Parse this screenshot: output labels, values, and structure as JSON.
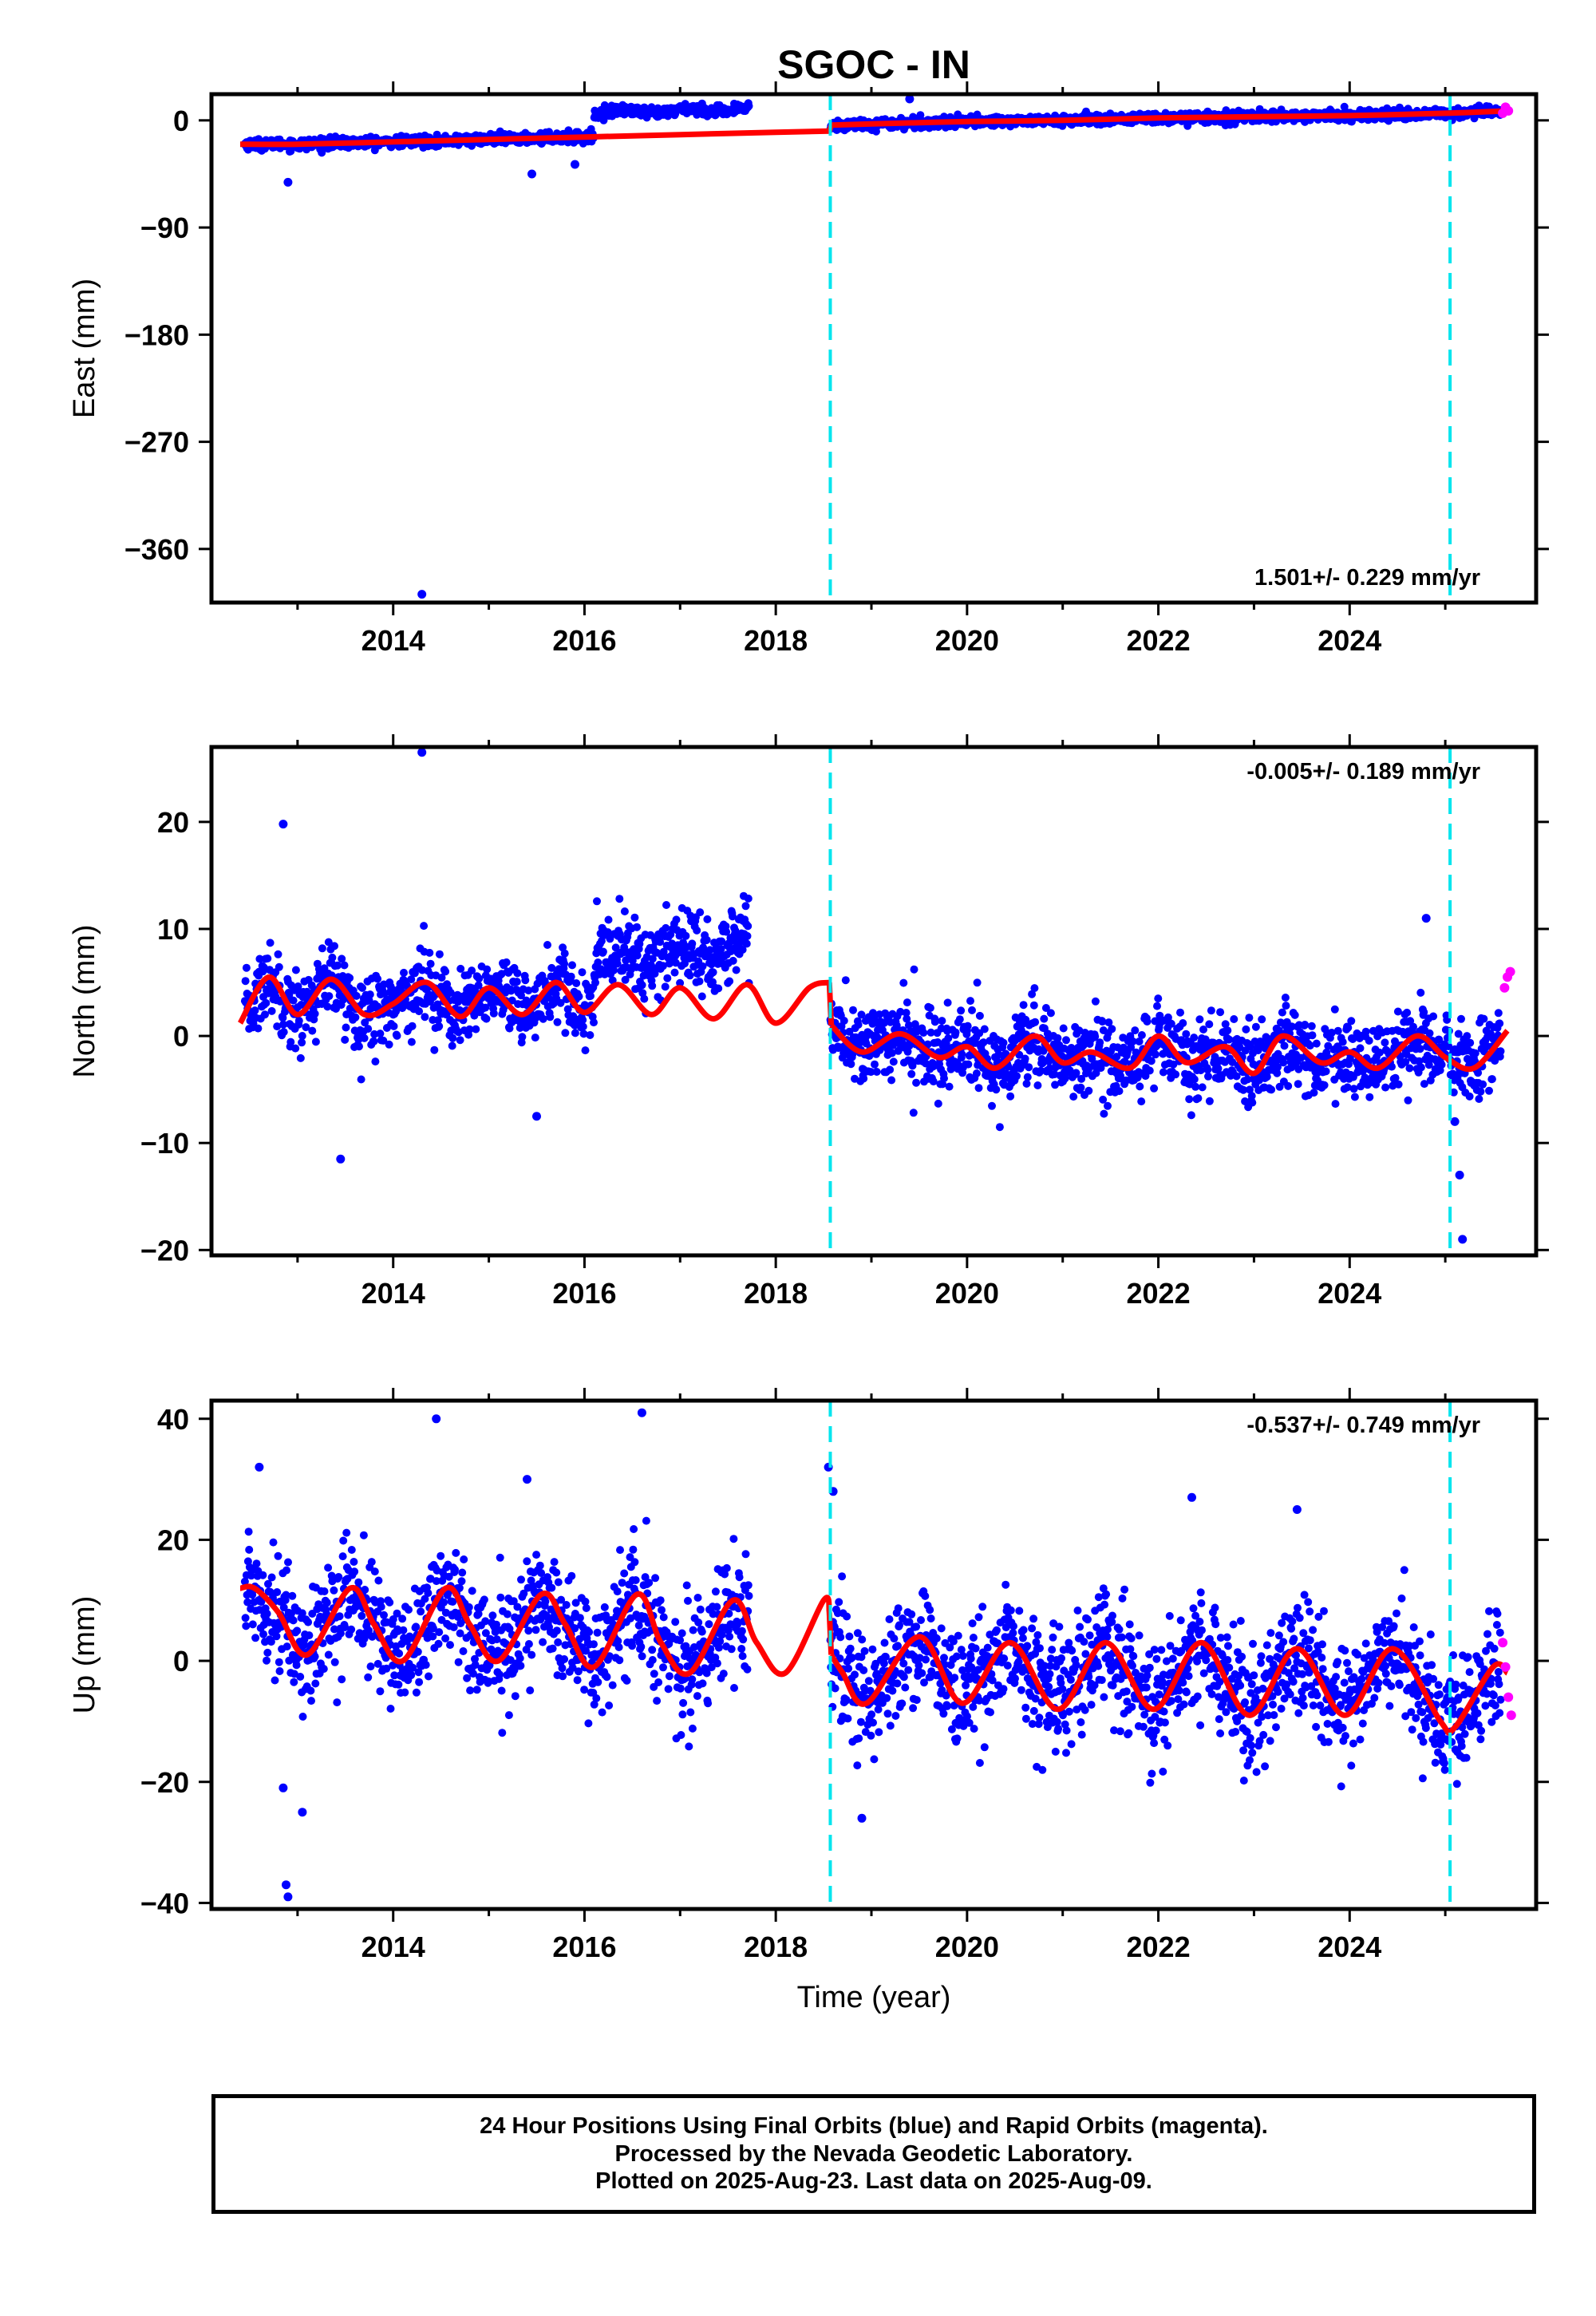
{
  "title": "SGOC - IN",
  "colors": {
    "final_orbits": "#0000ff",
    "rapid_orbits": "#ff00ff",
    "model": "#ff0000",
    "offset_marker": "#00e5ee",
    "frame": "#000000"
  },
  "x_axis": {
    "label": "Time (year)",
    "range": [
      2012.1,
      2025.95
    ],
    "ticks": [
      2014,
      2016,
      2018,
      2020,
      2022,
      2024
    ],
    "tick_labels": [
      "2014",
      "2016",
      "2018",
      "2020",
      "2022",
      "2024"
    ]
  },
  "offset_markers": [
    2018.57,
    2025.05
  ],
  "chart_data": [
    {
      "type": "scatter",
      "name": "east",
      "ylabel": "East (mm)",
      "ylim": [
        -405,
        22
      ],
      "yticks": [
        0,
        -90,
        -180,
        -270,
        -360
      ],
      "ytick_labels": [
        "0",
        "−90",
        "−180",
        "−270",
        "−360"
      ],
      "rate_label": "1.501+/- 0.229 mm/yr",
      "rate_position": "bottom-right",
      "model": {
        "x": [
          2012.4,
          2013.0,
          2014.0,
          2015.0,
          2016.0,
          2017.0,
          2018.0,
          2018.56,
          2018.58,
          2019.0,
          2020.0,
          2021.0,
          2022.0,
          2023.0,
          2024.0,
          2025.0,
          2025.65
        ],
        "y": [
          -20,
          -20,
          -18,
          -16,
          -14,
          -12,
          -10,
          -9,
          -4,
          -3,
          -1,
          0,
          2,
          3,
          4,
          6,
          8
        ]
      },
      "outliers": [
        [
          2014.3,
          -398
        ],
        [
          2012.9,
          -52
        ],
        [
          2015.45,
          -45
        ],
        [
          2015.9,
          -37
        ],
        [
          2019.4,
          18
        ]
      ],
      "rapid_points": [
        [
          2025.6,
          6
        ],
        [
          2025.63,
          11
        ],
        [
          2025.66,
          8
        ]
      ]
    },
    {
      "type": "scatter",
      "name": "north",
      "ylabel": "North (mm)",
      "ylim": [
        -20.5,
        27
      ],
      "yticks": [
        20,
        10,
        0,
        -10,
        -20
      ],
      "ytick_labels": [
        "20",
        "10",
        "0",
        "−10",
        "−20"
      ],
      "rate_label": "-0.005+/- 0.189 mm/yr",
      "rate_position": "top-right",
      "model": {
        "x": [
          2012.4,
          2012.7,
          2013.0,
          2013.35,
          2013.7,
          2014.0,
          2014.35,
          2014.7,
          2015.0,
          2015.35,
          2015.7,
          2016.0,
          2016.35,
          2016.7,
          2017.0,
          2017.35,
          2017.7,
          2018.0,
          2018.35,
          2018.56,
          2018.58,
          2018.9,
          2019.3,
          2019.7,
          2020.0,
          2020.3,
          2020.7,
          2021.0,
          2021.3,
          2021.7,
          2022.0,
          2022.3,
          2022.7,
          2023.0,
          2023.3,
          2023.7,
          2024.0,
          2024.3,
          2024.7,
          2025.0,
          2025.3,
          2025.65
        ],
        "y": [
          1.2,
          5.5,
          2.0,
          5.3,
          2.0,
          3.0,
          5.0,
          1.8,
          4.5,
          2.0,
          5.0,
          2.2,
          4.8,
          2.0,
          4.5,
          1.6,
          4.8,
          1.2,
          4.5,
          5.0,
          1.0,
          -1.5,
          0.2,
          -2.0,
          -1.0,
          -3.0,
          0.0,
          -2.5,
          -1.5,
          -3.0,
          0.0,
          -2.5,
          -1.0,
          -3.5,
          0.0,
          -2.5,
          -1.5,
          -3.0,
          0.0,
          -2.0,
          -3.0,
          0.5
        ]
      },
      "outliers": [
        [
          2014.3,
          26.5
        ],
        [
          2012.85,
          19.8
        ],
        [
          2013.45,
          -11.5
        ],
        [
          2015.5,
          -7.5
        ],
        [
          2024.8,
          11.0
        ],
        [
          2025.1,
          -8.0
        ],
        [
          2025.15,
          -13.0
        ],
        [
          2025.18,
          -19.0
        ]
      ],
      "rapid_points": [
        [
          2025.62,
          4.5
        ],
        [
          2025.65,
          5.5
        ],
        [
          2025.68,
          6.0
        ]
      ]
    },
    {
      "type": "scatter",
      "name": "up",
      "ylabel": "Up (mm)",
      "ylim": [
        -41,
        43
      ],
      "yticks": [
        40,
        20,
        0,
        -20,
        -40
      ],
      "ytick_labels": [
        "40",
        "20",
        "0",
        "−20",
        "−40"
      ],
      "rate_label": "-0.537+/- 0.749 mm/yr",
      "rate_position": "top-right",
      "model": {
        "x": [
          2012.4,
          2012.55,
          2012.8,
          2013.1,
          2013.55,
          2013.8,
          2014.1,
          2014.55,
          2014.8,
          2015.1,
          2015.55,
          2015.8,
          2016.1,
          2016.55,
          2016.8,
          2017.1,
          2017.55,
          2017.8,
          2018.1,
          2018.5,
          2018.56,
          2018.58,
          2018.7,
          2018.95,
          2019.5,
          2019.95,
          2020.45,
          2020.95,
          2021.45,
          2021.95,
          2022.45,
          2022.95,
          2023.45,
          2023.95,
          2024.45,
          2024.95,
          2025.1,
          2025.5,
          2025.65
        ],
        "y": [
          12,
          12,
          8,
          1,
          12,
          6,
          0,
          12,
          6,
          0,
          11,
          6,
          -1,
          11,
          3,
          -2,
          10,
          3,
          -2,
          10,
          8,
          1,
          -2,
          -7,
          4,
          -7,
          3,
          -8,
          3,
          -8,
          3,
          -9,
          2,
          -9,
          2,
          -10,
          -11,
          -1,
          -2
        ]
      },
      "outliers": [
        [
          2012.6,
          32
        ],
        [
          2012.85,
          -21
        ],
        [
          2012.88,
          -37
        ],
        [
          2012.9,
          -39
        ],
        [
          2013.05,
          -25
        ],
        [
          2014.45,
          40
        ],
        [
          2016.6,
          41
        ],
        [
          2015.4,
          30
        ],
        [
          2018.55,
          32
        ],
        [
          2018.6,
          28
        ],
        [
          2018.9,
          -26
        ],
        [
          2023.45,
          25
        ],
        [
          2022.35,
          27
        ]
      ],
      "rapid_points": [
        [
          2025.6,
          3
        ],
        [
          2025.63,
          -1
        ],
        [
          2025.66,
          -6
        ],
        [
          2025.69,
          -9
        ]
      ]
    }
  ],
  "footer": {
    "line1": "24 Hour Positions Using Final Orbits (blue) and Rapid Orbits (magenta).",
    "line2": "Processed by the Nevada Geodetic Laboratory.",
    "line3": "Plotted on 2025-Aug-23. Last data on 2025-Aug-09."
  }
}
